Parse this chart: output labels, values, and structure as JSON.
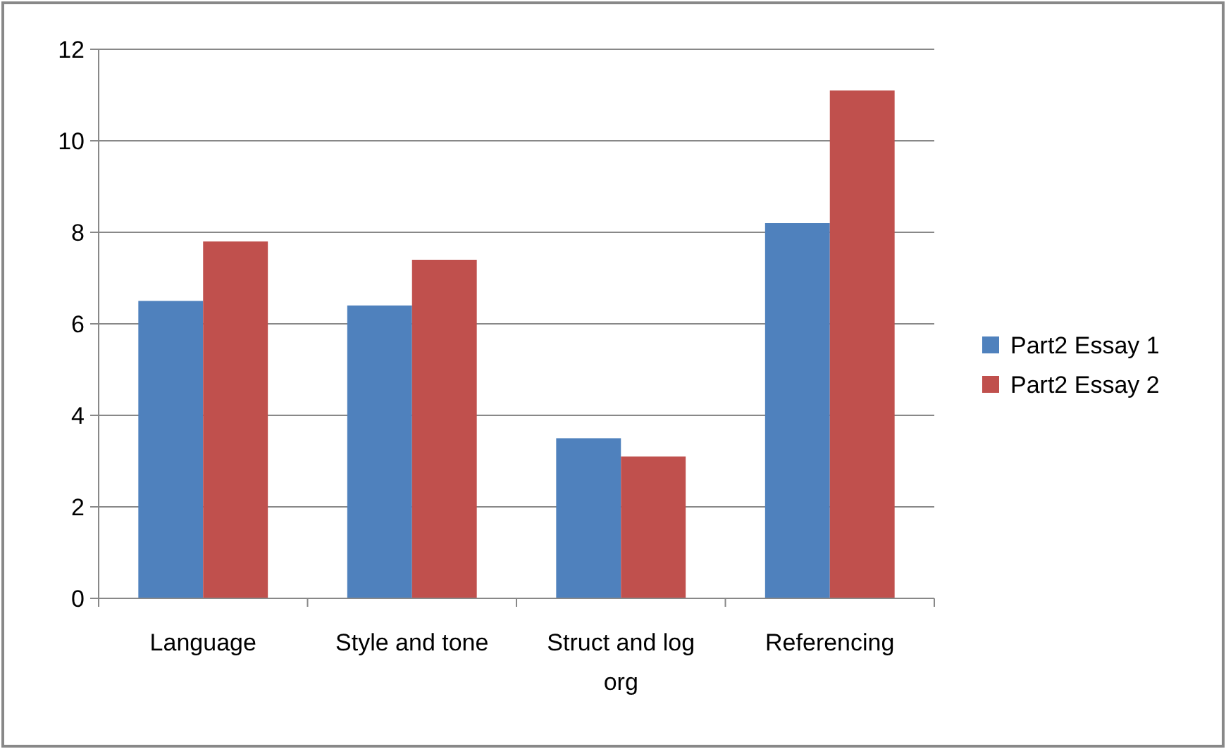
{
  "chart_data": {
    "type": "bar",
    "categories": [
      "Language",
      "Style and tone",
      "Struct and log org",
      "Referencing"
    ],
    "series": [
      {
        "name": "Part2 Essay 1",
        "color": "#4f81bd",
        "values": [
          6.5,
          6.4,
          3.5,
          8.2
        ]
      },
      {
        "name": "Part2 Essay 2",
        "color": "#c0504d",
        "values": [
          7.8,
          7.4,
          3.1,
          11.1
        ]
      }
    ],
    "ylim": [
      0,
      12
    ],
    "yticks": [
      0,
      2,
      4,
      6,
      8,
      10,
      12
    ],
    "grid": "y",
    "legend": "right"
  }
}
